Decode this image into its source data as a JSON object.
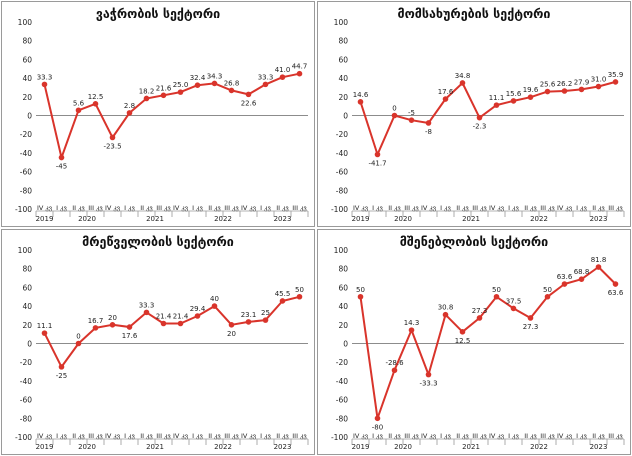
{
  "chart_data": [
    {
      "type": "line",
      "title": "ვაჭრობის სექტორი",
      "categories": [
        "IV კვ",
        "I კვ",
        "II კვ",
        "III კვ",
        "IV კვ",
        "I კვ",
        "II კვ",
        "III კვ",
        "IV კვ",
        "I კვ",
        "II კვ",
        "III კვ",
        "IV კვ",
        "I კვ",
        "II კვ",
        "III კვ"
      ],
      "years": [
        "2019",
        "2020",
        "2021",
        "2022",
        "2023"
      ],
      "values": [
        33.3,
        -45,
        5.6,
        12.5,
        -23.5,
        2.8,
        18.2,
        21.6,
        25.0,
        32.4,
        34.3,
        26.8,
        22.6,
        33.3,
        41.0,
        44.7
      ],
      "labels": [
        "33.3",
        "-45",
        "5.6",
        "12.5",
        "-23.5",
        "2.8",
        "18.2",
        "21.6",
        "25.0",
        "32.4",
        "34.3",
        "26.8",
        "22.6",
        "33.3",
        "41.0",
        "44.7"
      ],
      "yticks": [
        "100",
        "80",
        "60",
        "40",
        "20",
        "0",
        "-20",
        "-40",
        "-60",
        "-80",
        "-100"
      ],
      "ylim": [
        -100,
        100
      ],
      "color": "#d9342b"
    },
    {
      "type": "line",
      "title": "მომსახურების სექტორი",
      "categories": [
        "IV კვ",
        "I კვ",
        "II კვ",
        "III კვ",
        "IV კვ",
        "I კვ",
        "II კვ",
        "III კვ",
        "IV კვ",
        "I კვ",
        "II კვ",
        "III კვ",
        "IV კვ",
        "I კვ",
        "II კვ",
        "III კვ"
      ],
      "years": [
        "2019",
        "2020",
        "2021",
        "2022",
        "2023"
      ],
      "values": [
        14.6,
        -41.7,
        0,
        -5,
        -8,
        17.6,
        34.8,
        -2.3,
        11.1,
        15.6,
        19.6,
        25.6,
        26.2,
        27.9,
        31.0,
        35.9
      ],
      "labels": [
        "14.6",
        "-41.7",
        "0",
        "-5",
        "-8",
        "17.6",
        "34.8",
        "-2.3",
        "11.1",
        "15.6",
        "19.6",
        "25.6",
        "26.2",
        "27.9",
        "31.0",
        "35.9"
      ],
      "yticks": [
        "100",
        "80",
        "60",
        "40",
        "20",
        "0",
        "-20",
        "-40",
        "-60",
        "-80",
        "-100"
      ],
      "ylim": [
        -100,
        100
      ],
      "color": "#d9342b"
    },
    {
      "type": "line",
      "title": "მრეწველობის სექტორი",
      "categories": [
        "IV კვ",
        "I კვ",
        "II კვ",
        "III კვ",
        "IV კვ",
        "I კვ",
        "II კვ",
        "III კვ",
        "IV კვ",
        "I კვ",
        "II კვ",
        "III კვ",
        "IV კვ",
        "I კვ",
        "II კვ",
        "III კვ"
      ],
      "years": [
        "2019",
        "2020",
        "2021",
        "2022",
        "2023"
      ],
      "values": [
        11.1,
        -25,
        0,
        16.7,
        20,
        17.6,
        33.3,
        21.4,
        21.4,
        29.4,
        40,
        20,
        23.1,
        25,
        45.5,
        50
      ],
      "labels": [
        "11.1",
        "-25",
        "0",
        "16.7",
        "20",
        "17.6",
        "33.3",
        "21.4",
        "21.4",
        "29.4",
        "40",
        "20",
        "23.1",
        "25",
        "45.5",
        "50"
      ],
      "yticks": [
        "100",
        "80",
        "60",
        "40",
        "20",
        "0",
        "-20",
        "-40",
        "-60",
        "-80",
        "-100"
      ],
      "ylim": [
        -100,
        100
      ],
      "color": "#d9342b"
    },
    {
      "type": "line",
      "title": "მშენებლობის სექტორი",
      "categories": [
        "IV კვ",
        "I კვ",
        "II კვ",
        "III კვ",
        "IV კვ",
        "I კვ",
        "II კვ",
        "III კვ",
        "IV კვ",
        "I კვ",
        "II კვ",
        "III კვ",
        "IV კვ",
        "I კვ",
        "II კვ",
        "III კვ"
      ],
      "years": [
        "2019",
        "2020",
        "2021",
        "2022",
        "2023"
      ],
      "values": [
        50,
        -80,
        -28.6,
        14.3,
        -33.3,
        30.8,
        12.5,
        27.3,
        50,
        37.5,
        27.3,
        50,
        63.6,
        68.8,
        81.8,
        63.6
      ],
      "labels": [
        "50",
        "-80",
        "-28.6",
        "14.3",
        "-33.3",
        "30.8",
        "12.5",
        "27.3",
        "50",
        "37.5",
        "27.3",
        "50",
        "63.6",
        "68.8",
        "81.8",
        "63.6"
      ],
      "yticks": [
        "100",
        "80",
        "60",
        "40",
        "20",
        "0",
        "-20",
        "-40",
        "-60",
        "-80",
        "-100"
      ],
      "ylim": [
        -100,
        100
      ],
      "color": "#d9342b"
    }
  ]
}
